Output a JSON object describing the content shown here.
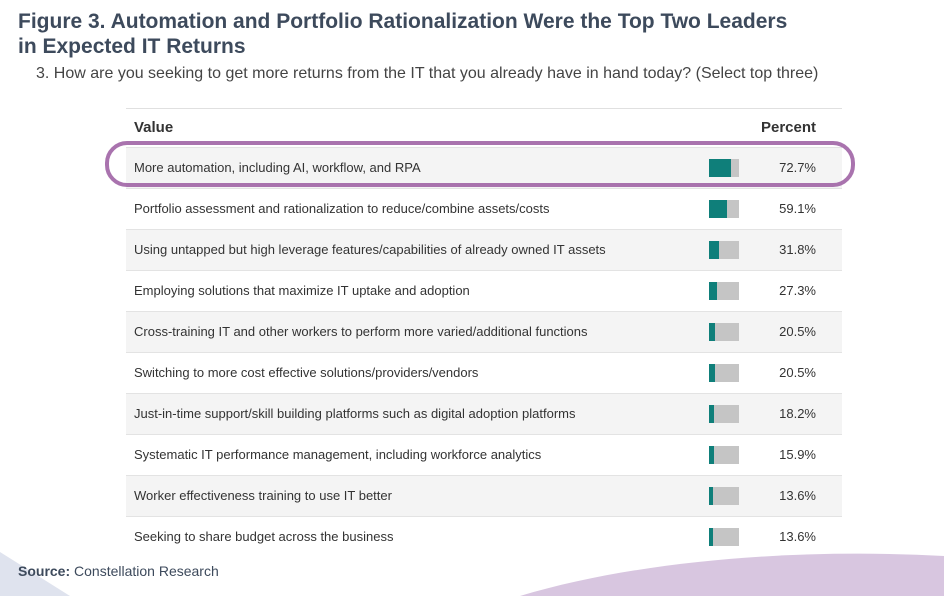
{
  "figure": {
    "title_line1": "Figure 3. Automation and Portfolio Rationalization Were the Top Two Leaders",
    "title_line2": "in Expected IT Returns",
    "question": "3. How are you seeking to get more returns from the IT that you already have in hand today? (Select top three)"
  },
  "table": {
    "col_value": "Value",
    "col_percent": "Percent"
  },
  "chart_data": {
    "type": "bar",
    "categories": [
      "More automation, including AI, workflow, and RPA",
      "Portfolio assessment and rationalization to reduce/combine assets/costs",
      "Using untapped but high leverage features/capabilities of already owned IT assets",
      "Employing solutions that maximize IT uptake and adoption",
      "Cross-training IT and other workers to perform more varied/additional functions",
      "Switching to more cost effective solutions/providers/vendors",
      "Just-in-time support/skill building platforms such as digital adoption platforms",
      "Systematic IT performance management, including workforce analytics",
      "Worker effectiveness training to use IT better",
      "Seeking to share budget across the business"
    ],
    "values": [
      72.7,
      59.1,
      31.8,
      27.3,
      20.5,
      20.5,
      18.2,
      15.9,
      13.6,
      13.6
    ],
    "value_labels": [
      "72.7%",
      "59.1%",
      "31.8%",
      "27.3%",
      "20.5%",
      "20.5%",
      "18.2%",
      "15.9%",
      "13.6%",
      "13.6%"
    ],
    "ylim": [
      0,
      100
    ],
    "highlighted_index": 0
  },
  "source": {
    "label": "Source:",
    "text": "Constellation Research"
  },
  "colors": {
    "bar_fill": "#0f7f7a",
    "bar_track": "#c5c5c5",
    "highlight": "#9a5aa0",
    "title": "#3d4a5c",
    "decoration": "#d8c6e0"
  }
}
